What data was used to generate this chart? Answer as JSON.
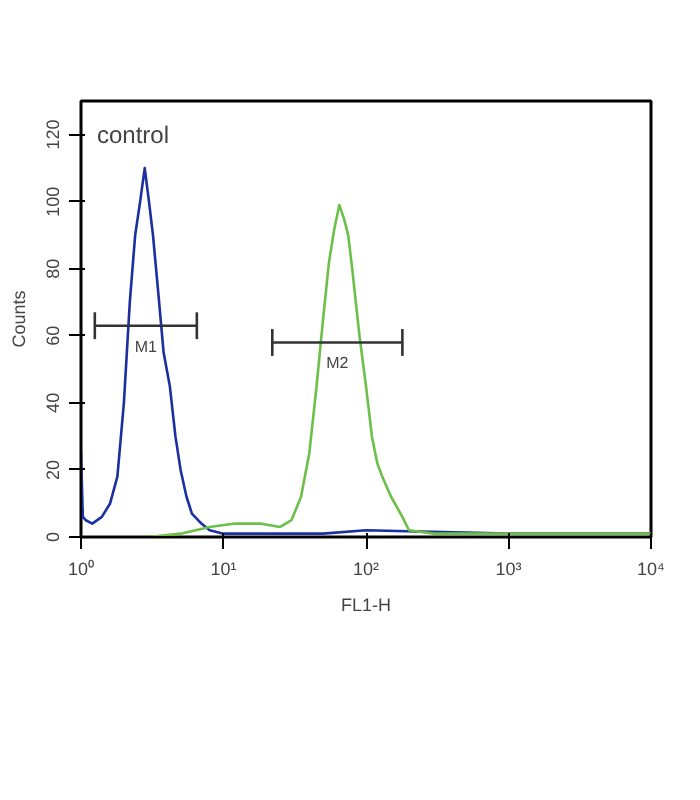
{
  "chart_data": {
    "type": "line",
    "xlabel": "FL1-H",
    "ylabel": "Counts",
    "log": "x",
    "xlim": [
      1,
      10000
    ],
    "ylim": [
      0,
      130
    ],
    "xticks": [
      {
        "value": 1,
        "label": "10⁰"
      },
      {
        "value": 10,
        "label": "10¹"
      },
      {
        "value": 100,
        "label": "10²"
      },
      {
        "value": 1000,
        "label": "10³"
      },
      {
        "value": 10000,
        "label": "10⁴"
      }
    ],
    "yticks": [
      0,
      20,
      40,
      60,
      80,
      100,
      120
    ],
    "grid": false,
    "marker": "none",
    "line_style": "solid",
    "series": [
      {
        "color": "#1a2fa0",
        "x": [
          1,
          1.03,
          1.08,
          1.2,
          1.4,
          1.6,
          1.8,
          2.0,
          2.2,
          2.4,
          2.6,
          2.8,
          3.0,
          3.2,
          3.5,
          3.8,
          4.2,
          4.6,
          5,
          5.5,
          6,
          7,
          8,
          10,
          20,
          50,
          100,
          1000,
          10000
        ],
        "values": [
          25,
          6,
          5,
          4,
          6,
          10,
          18,
          40,
          70,
          90,
          100,
          110,
          100,
          90,
          72,
          55,
          45,
          30,
          20,
          12,
          7,
          4,
          2,
          1,
          1,
          1,
          2,
          1,
          1
        ]
      },
      {
        "color": "#6cc04a",
        "x": [
          1,
          3,
          5,
          8,
          12,
          18,
          25,
          30,
          35,
          40,
          45,
          50,
          55,
          60,
          65,
          70,
          75,
          80,
          90,
          100,
          110,
          120,
          130,
          150,
          180,
          200,
          300,
          1000,
          10000
        ],
        "values": [
          0,
          0,
          1,
          3,
          4,
          4,
          3,
          5,
          12,
          25,
          45,
          65,
          82,
          92,
          99,
          95,
          90,
          80,
          60,
          45,
          30,
          22,
          18,
          12,
          6,
          2,
          1,
          1,
          1
        ]
      },
      {
        "color": "#333333",
        "x": [
          1.25,
          6.5
        ],
        "values": [
          63,
          63
        ],
        "errors": [
          4,
          4
        ]
      },
      {
        "color": "#333333",
        "x": [
          22,
          180
        ],
        "values": [
          58,
          58
        ],
        "errors": [
          4,
          4
        ]
      }
    ],
    "annotations": [
      "control",
      "M1",
      "M2"
    ]
  }
}
